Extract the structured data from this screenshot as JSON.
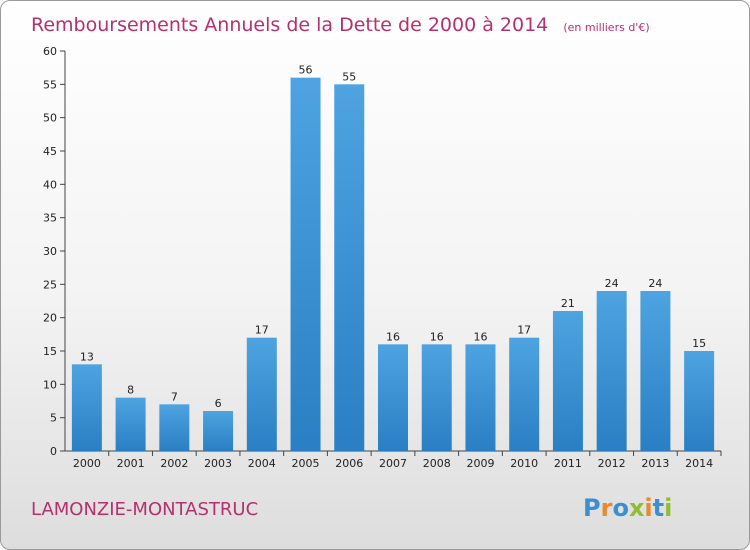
{
  "chart_data": {
    "type": "bar",
    "title": "Remboursements Annuels de la Dette de 2000 à 2014",
    "unit_label": "(en milliers d'€)",
    "categories": [
      "2000",
      "2001",
      "2002",
      "2003",
      "2004",
      "2005",
      "2006",
      "2007",
      "2008",
      "2009",
      "2010",
      "2011",
      "2012",
      "2013",
      "2014"
    ],
    "values": [
      13,
      8,
      7,
      6,
      17,
      56,
      55,
      16,
      16,
      16,
      17,
      21,
      24,
      24,
      15
    ],
    "ylim": [
      0,
      60
    ],
    "yticks": [
      0,
      5,
      10,
      15,
      20,
      25,
      30,
      35,
      40,
      45,
      50,
      55,
      60
    ],
    "grid": false,
    "bar_color": "#4ea3e0",
    "bar_color_dark": "#2a7fc4"
  },
  "commune": "LAMONZIE-MONTASTRUC",
  "logo": {
    "letters": [
      "P",
      "r",
      "o",
      "x",
      "i",
      "t",
      "i"
    ],
    "colors": [
      "#3a8fd1",
      "#e8892b",
      "#3a8fd1",
      "#8fbf2f",
      "#e8892b",
      "#3a8fd1",
      "#8fbf2f"
    ]
  },
  "colors": {
    "title": "#b5306e",
    "axis": "#444444"
  }
}
